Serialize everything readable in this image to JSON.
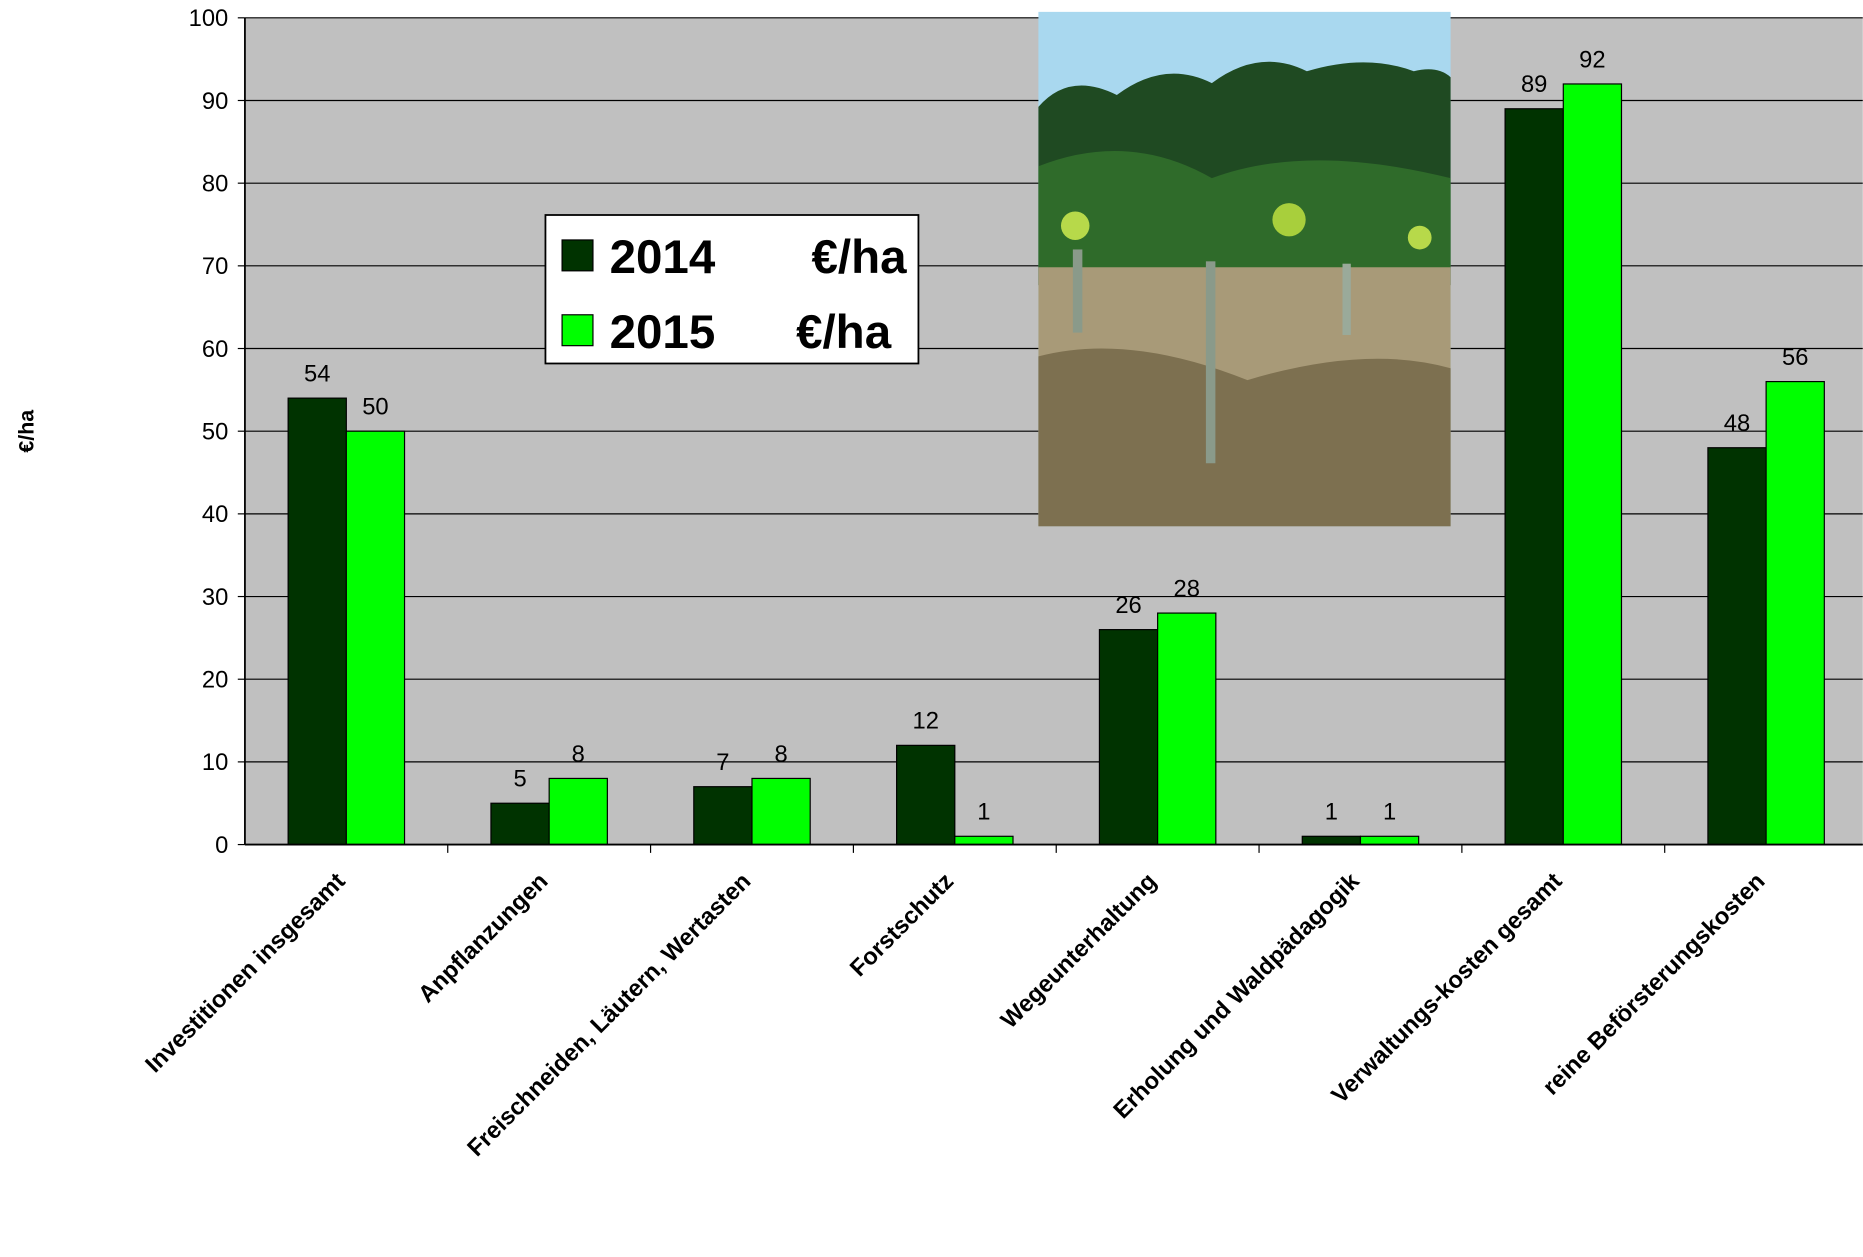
{
  "chart_data": {
    "type": "bar",
    "y_label": "€/ha",
    "legend_unit": "€/ha",
    "categories": [
      "Investitionen insgesamt",
      "Anpflanzungen",
      "Freischneiden, Läutern, Wertasten",
      "Forstschutz",
      "Wegeunterhaltung",
      "Erholung und Waldpädagogik",
      "Verwaltungs-kosten gesamt",
      "reine Beförsterungskosten"
    ],
    "series": [
      {
        "name": "2014",
        "color": "#003300",
        "values": [
          54,
          5,
          7,
          12,
          26,
          1,
          89,
          48
        ]
      },
      {
        "name": "2015",
        "color": "#00ff00",
        "values": [
          50,
          8,
          8,
          1,
          28,
          1,
          92,
          56
        ]
      }
    ],
    "ylim": [
      0,
      100
    ],
    "yticks": [
      0,
      10,
      20,
      30,
      40,
      50,
      60,
      70,
      80,
      90,
      100
    ],
    "grid": true
  }
}
